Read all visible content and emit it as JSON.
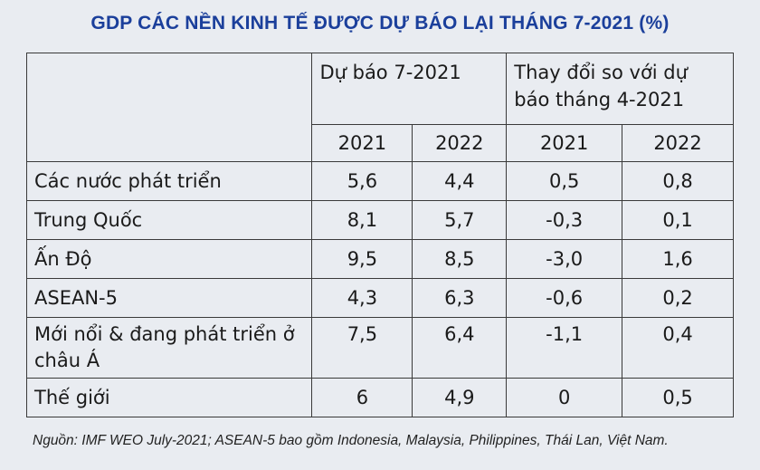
{
  "title": "GDP CÁC NỀN KINH TẾ ĐƯỢC DỰ BÁO LẠI  THÁNG 7-2021 (%)",
  "chart_data": {
    "type": "table",
    "group_headers": [
      "Dự báo 7-2021",
      "Thay đổi so với dự báo tháng 4-2021"
    ],
    "columns": [
      "2021",
      "2022",
      "2021",
      "2022"
    ],
    "rows": [
      {
        "label": "Các nước phát triển",
        "values": [
          "5,6",
          "4,4",
          "0,5",
          "0,8"
        ]
      },
      {
        "label": "Trung Quốc",
        "values": [
          "8,1",
          "5,7",
          "-0,3",
          "0,1"
        ]
      },
      {
        "label": "Ấn Độ",
        "values": [
          "9,5",
          "8,5",
          "-3,0",
          "1,6"
        ]
      },
      {
        "label": "ASEAN-5",
        "values": [
          "4,3",
          "6,3",
          "-0,6",
          "0,2"
        ]
      },
      {
        "label": "Mới nổi & đang phát triển ở châu Á",
        "values": [
          "7,5",
          "6,4",
          "-1,1",
          "0,4"
        ]
      },
      {
        "label": "Thế giới",
        "values": [
          "6",
          "4,9",
          "0",
          "0,5"
        ]
      }
    ]
  },
  "source": "Nguồn: IMF WEO July-2021; ASEAN-5 bao gồm Indonesia, Malaysia, Philippines, Thái Lan, Việt Nam."
}
